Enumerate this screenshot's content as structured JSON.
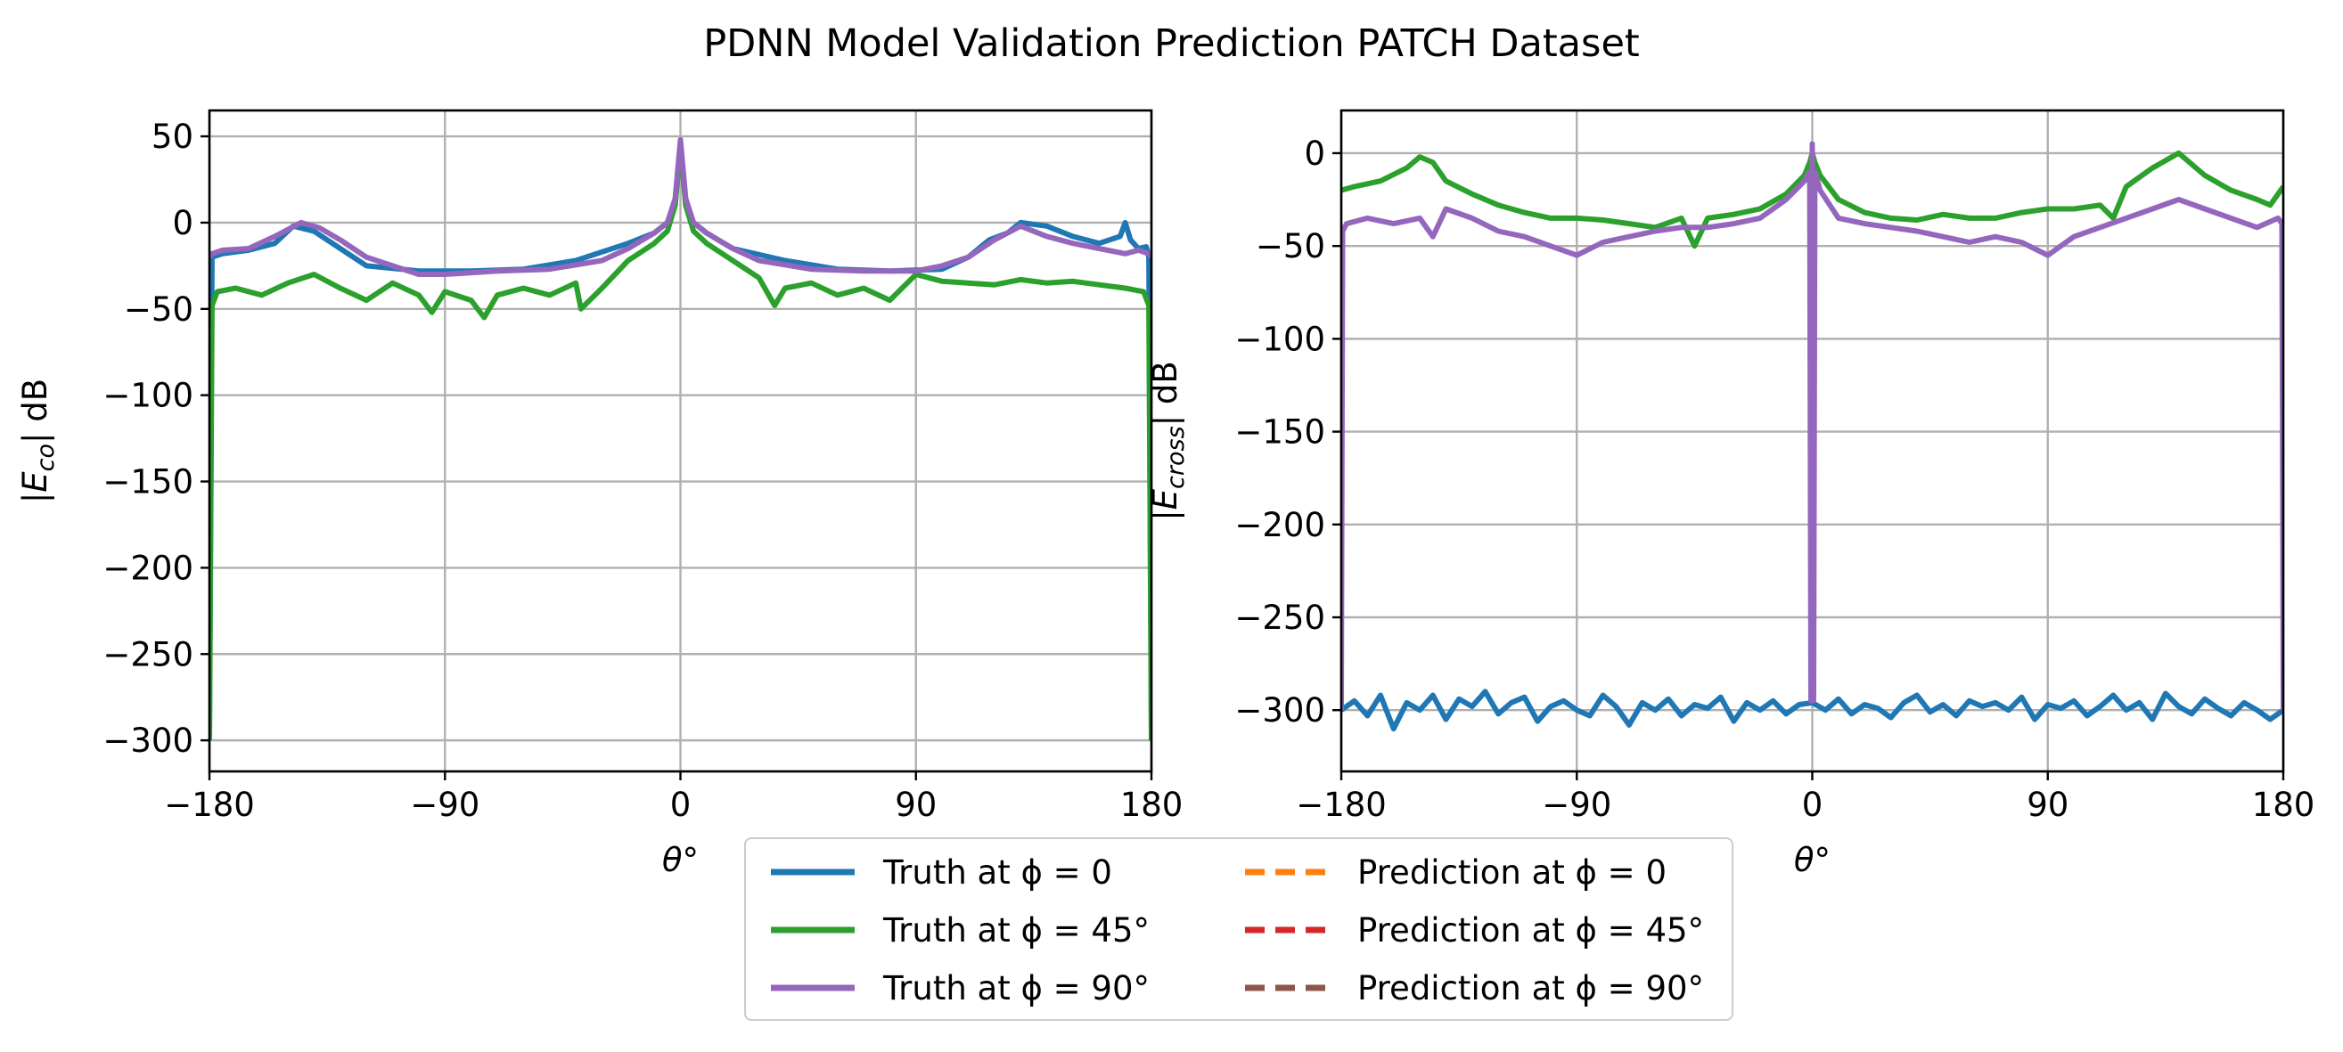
{
  "figure": {
    "title": "PDNN Model Validation Prediction PATCH Dataset"
  },
  "legend": {
    "entries": [
      {
        "label": "Truth at ϕ = 0",
        "color": "#1f77b4",
        "dashed": false
      },
      {
        "label": "Truth at ϕ = 45°",
        "color": "#2ca02c",
        "dashed": false
      },
      {
        "label": "Truth at ϕ = 90°",
        "color": "#9467bd",
        "dashed": false
      },
      {
        "label": "Prediction at ϕ = 0",
        "color": "#ff7f0e",
        "dashed": true
      },
      {
        "label": "Prediction at ϕ = 45°",
        "color": "#d62728",
        "dashed": true
      },
      {
        "label": "Prediction at ϕ = 90°",
        "color": "#8c564b",
        "dashed": true
      }
    ]
  },
  "chart_data": [
    {
      "type": "line",
      "xlabel": "θ°",
      "ylabel": "|E_co| dB",
      "xlim": [
        -180,
        180
      ],
      "ylim": [
        -318,
        65
      ],
      "xticks": [
        -180,
        -90,
        0,
        90,
        180
      ],
      "xtick_labels": [
        "−180",
        "−90",
        "0",
        "90",
        "180"
      ],
      "yticks": [
        50,
        0,
        -50,
        -100,
        -150,
        -200,
        -250,
        -300
      ],
      "ytick_labels": [
        "50",
        "0",
        "−50",
        "−100",
        "−150",
        "−200",
        "−250",
        "−300"
      ],
      "grid": true,
      "series": [
        {
          "name": "Truth at ϕ = 0",
          "color": "#1f77b4",
          "x": [
            -180,
            -179,
            -175,
            -165,
            -155,
            -148,
            -140,
            -130,
            -120,
            -100,
            -80,
            -60,
            -40,
            -20,
            -10,
            -5,
            -2,
            0,
            2,
            5,
            10,
            20,
            40,
            60,
            80,
            100,
            110,
            118,
            125,
            130,
            140,
            150,
            160,
            168,
            170,
            172,
            175,
            178,
            179,
            180
          ],
          "y": [
            -300,
            -20,
            -18,
            -16,
            -12,
            -2,
            -5,
            -15,
            -25,
            -28,
            -28,
            -27,
            -22,
            -12,
            -6,
            0,
            12,
            46,
            12,
            0,
            -6,
            -15,
            -22,
            -27,
            -28,
            -27,
            -20,
            -10,
            -6,
            0,
            -2,
            -8,
            -12,
            -8,
            0,
            -10,
            -15,
            -14,
            -20,
            -300
          ]
        },
        {
          "name": "Truth at ϕ = 45°",
          "color": "#2ca02c",
          "x": [
            -180,
            -179,
            -177,
            -170,
            -160,
            -150,
            -140,
            -130,
            -120,
            -110,
            -100,
            -95,
            -90,
            -80,
            -75,
            -70,
            -60,
            -50,
            -40,
            -38,
            -30,
            -20,
            -10,
            -5,
            -2,
            0,
            2,
            5,
            10,
            20,
            30,
            36,
            40,
            50,
            60,
            70,
            80,
            90,
            100,
            110,
            120,
            130,
            140,
            150,
            160,
            170,
            177,
            179,
            180
          ],
          "y": [
            -300,
            -48,
            -40,
            -38,
            -42,
            -35,
            -30,
            -38,
            -45,
            -35,
            -42,
            -52,
            -40,
            -45,
            -55,
            -42,
            -38,
            -42,
            -35,
            -50,
            -38,
            -22,
            -12,
            -5,
            10,
            44,
            10,
            -5,
            -12,
            -22,
            -32,
            -48,
            -38,
            -35,
            -42,
            -38,
            -45,
            -30,
            -34,
            -35,
            -36,
            -33,
            -35,
            -34,
            -36,
            -38,
            -40,
            -48,
            -300
          ]
        },
        {
          "name": "Truth at ϕ = 90°",
          "color": "#9467bd",
          "x": [
            -180,
            -179,
            -175,
            -165,
            -155,
            -145,
            -138,
            -130,
            -120,
            -110,
            -100,
            -90,
            -70,
            -50,
            -30,
            -20,
            -10,
            -5,
            -2,
            0,
            2,
            5,
            10,
            20,
            30,
            50,
            70,
            90,
            100,
            110,
            120,
            130,
            140,
            150,
            160,
            170,
            175,
            179,
            180
          ],
          "y": [
            -20,
            -18,
            -16,
            -15,
            -8,
            0,
            -3,
            -10,
            -20,
            -25,
            -30,
            -30,
            -28,
            -27,
            -22,
            -15,
            -6,
            0,
            14,
            48,
            14,
            0,
            -6,
            -15,
            -22,
            -27,
            -28,
            -28,
            -25,
            -20,
            -10,
            -2,
            -8,
            -12,
            -15,
            -18,
            -16,
            -18,
            -20
          ]
        },
        {
          "name": "Prediction at ϕ = 0",
          "color": "#ff7f0e",
          "dashed": true,
          "x": [],
          "y": []
        },
        {
          "name": "Prediction at ϕ = 45°",
          "color": "#d62728",
          "dashed": true,
          "x": [],
          "y": []
        },
        {
          "name": "Prediction at ϕ = 90°",
          "color": "#8c564b",
          "dashed": true,
          "x": [],
          "y": []
        }
      ]
    },
    {
      "type": "line",
      "xlabel": "θ°",
      "ylabel": "|E_cross| dB",
      "xlim": [
        -180,
        180
      ],
      "ylim": [
        -333,
        23
      ],
      "xticks": [
        -180,
        -90,
        0,
        90,
        180
      ],
      "xtick_labels": [
        "−180",
        "−90",
        "0",
        "90",
        "180"
      ],
      "yticks": [
        0,
        -50,
        -100,
        -150,
        -200,
        -250,
        -300
      ],
      "ytick_labels": [
        "0",
        "−50",
        "−100",
        "−150",
        "−200",
        "−250",
        "−300"
      ],
      "grid": true,
      "series": [
        {
          "name": "Truth at ϕ = 0",
          "color": "#1f77b4",
          "x": [
            -180,
            -175,
            -170,
            -165,
            -160,
            -155,
            -150,
            -145,
            -140,
            -135,
            -130,
            -125,
            -120,
            -115,
            -110,
            -105,
            -100,
            -95,
            -90,
            -85,
            -80,
            -75,
            -70,
            -65,
            -60,
            -55,
            -50,
            -45,
            -40,
            -35,
            -30,
            -25,
            -20,
            -15,
            -10,
            -5,
            0,
            5,
            10,
            15,
            20,
            25,
            30,
            35,
            40,
            45,
            50,
            55,
            60,
            65,
            70,
            75,
            80,
            85,
            90,
            95,
            100,
            105,
            110,
            115,
            120,
            125,
            130,
            135,
            140,
            145,
            150,
            155,
            160,
            165,
            170,
            175,
            180
          ],
          "y": [
            -300,
            -295,
            -303,
            -292,
            -310,
            -296,
            -300,
            -292,
            -305,
            -294,
            -298,
            -290,
            -302,
            -296,
            -293,
            -306,
            -298,
            -295,
            -300,
            -303,
            -292,
            -298,
            -308,
            -296,
            -300,
            -294,
            -303,
            -297,
            -299,
            -293,
            -306,
            -296,
            -300,
            -295,
            -302,
            -297,
            -296,
            -300,
            -294,
            -302,
            -297,
            -299,
            -304,
            -296,
            -292,
            -301,
            -297,
            -303,
            -295,
            -298,
            -296,
            -300,
            -293,
            -305,
            -297,
            -299,
            -295,
            -303,
            -298,
            -292,
            -300,
            -296,
            -305,
            -291,
            -298,
            -302,
            -294,
            -299,
            -303,
            -296,
            -300,
            -305,
            -300
          ]
        },
        {
          "name": "Truth at ϕ = 45°",
          "color": "#2ca02c",
          "x": [
            -180,
            -175,
            -165,
            -155,
            -150,
            -145,
            -140,
            -130,
            -120,
            -110,
            -100,
            -90,
            -80,
            -70,
            -60,
            -50,
            -45,
            -40,
            -30,
            -20,
            -10,
            -3,
            -1,
            0,
            1,
            3,
            10,
            20,
            30,
            40,
            50,
            60,
            70,
            80,
            90,
            100,
            110,
            115,
            120,
            130,
            140,
            150,
            160,
            170,
            175,
            180
          ],
          "y": [
            -20,
            -18,
            -15,
            -8,
            -2,
            -5,
            -15,
            -22,
            -28,
            -32,
            -35,
            -35,
            -36,
            -38,
            -40,
            -35,
            -50,
            -35,
            -33,
            -30,
            -22,
            -12,
            -5,
            0,
            -5,
            -12,
            -25,
            -32,
            -35,
            -36,
            -33,
            -35,
            -35,
            -32,
            -30,
            -30,
            -28,
            -35,
            -18,
            -8,
            0,
            -12,
            -20,
            -25,
            -28,
            -18
          ]
        },
        {
          "name": "Truth at ϕ = 90°",
          "color": "#9467bd",
          "x": [
            -180,
            -179.5,
            -178,
            -170,
            -160,
            -150,
            -145,
            -140,
            -130,
            -120,
            -110,
            -100,
            -90,
            -80,
            -70,
            -60,
            -50,
            -40,
            -30,
            -20,
            -10,
            -3,
            -1,
            -0.5,
            0,
            0.5,
            1,
            3,
            10,
            20,
            30,
            40,
            50,
            60,
            70,
            80,
            90,
            100,
            110,
            120,
            130,
            140,
            150,
            160,
            170,
            178,
            179.5,
            180
          ],
          "y": [
            -300,
            -42,
            -38,
            -35,
            -38,
            -35,
            -45,
            -30,
            -35,
            -42,
            -45,
            -50,
            -55,
            -48,
            -45,
            -42,
            -40,
            -40,
            -38,
            -35,
            -25,
            -15,
            -10,
            -295,
            5,
            -295,
            -10,
            -20,
            -35,
            -38,
            -40,
            -42,
            -45,
            -48,
            -45,
            -48,
            -55,
            -45,
            -40,
            -35,
            -30,
            -25,
            -30,
            -35,
            -40,
            -35,
            -38,
            -300
          ]
        },
        {
          "name": "Prediction at ϕ = 0",
          "color": "#ff7f0e",
          "dashed": true,
          "x": [],
          "y": []
        },
        {
          "name": "Prediction at ϕ = 45°",
          "color": "#d62728",
          "dashed": true,
          "x": [],
          "y": []
        },
        {
          "name": "Prediction at ϕ = 90°",
          "color": "#8c564b",
          "dashed": true,
          "x": [],
          "y": []
        }
      ]
    }
  ]
}
